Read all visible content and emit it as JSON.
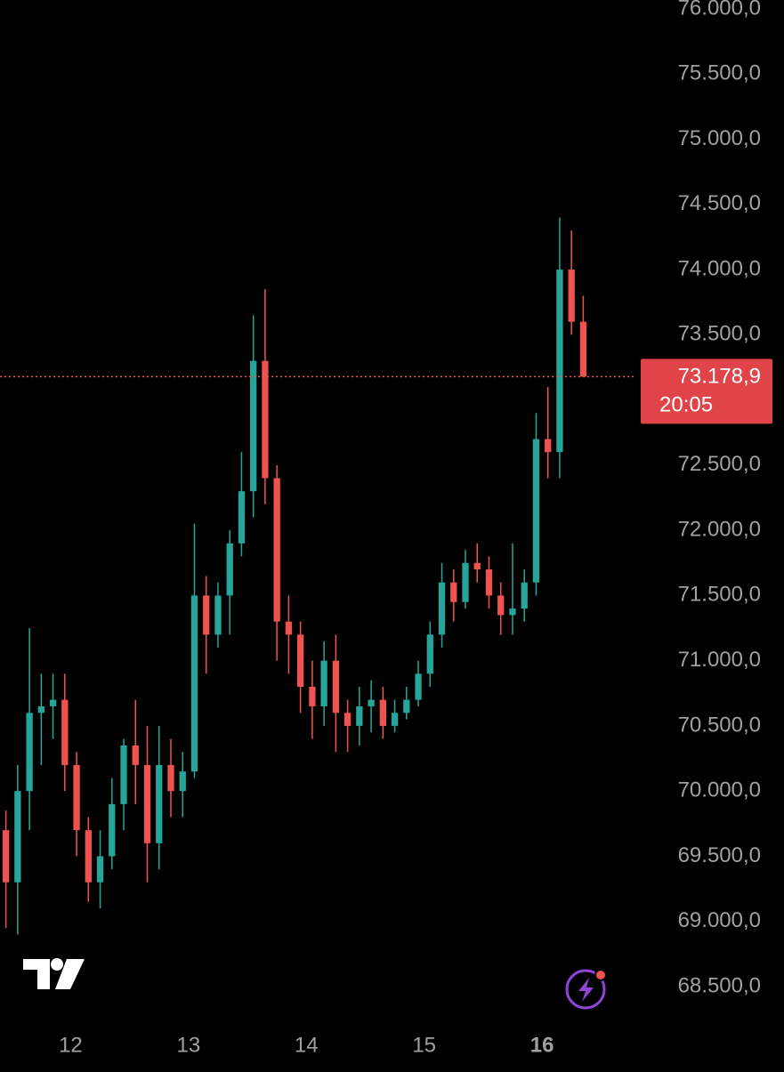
{
  "chart_data": {
    "type": "candlestick",
    "x": [
      11.45,
      11.55,
      11.65,
      11.75,
      11.85,
      11.95,
      12.05,
      12.15,
      12.25,
      12.35,
      12.45,
      12.55,
      12.65,
      12.75,
      12.85,
      12.95,
      13.05,
      13.15,
      13.25,
      13.35,
      13.45,
      13.55,
      13.65,
      13.75,
      13.85,
      13.95,
      14.05,
      14.15,
      14.25,
      14.35,
      14.45,
      14.55,
      14.65,
      14.75,
      14.85,
      14.95,
      15.05,
      15.15,
      15.25,
      15.35,
      15.45,
      15.55,
      15.65,
      15.75,
      15.85,
      15.95,
      16.05,
      16.15,
      16.25,
      16.35
    ],
    "open": [
      69700,
      69300,
      70000,
      70600,
      70650,
      70700,
      70200,
      69700,
      69300,
      69500,
      69900,
      70350,
      70200,
      69600,
      70200,
      70000,
      70150,
      71500,
      71200,
      71500,
      71900,
      72300,
      73300,
      72400,
      71300,
      71200,
      70800,
      70650,
      71000,
      70600,
      70500,
      70650,
      70700,
      70500,
      70600,
      70700,
      70900,
      71200,
      71600,
      71450,
      71750,
      71700,
      71500,
      71350,
      71400,
      71600,
      72700,
      72600,
      74000,
      73600
    ],
    "high": [
      69850,
      70200,
      71250,
      70900,
      70900,
      70900,
      70300,
      69800,
      69700,
      70100,
      70400,
      70700,
      70500,
      70500,
      70400,
      70300,
      72050,
      71650,
      71600,
      72000,
      72600,
      73650,
      73850,
      72500,
      71500,
      71300,
      71000,
      71150,
      71200,
      70700,
      70800,
      70850,
      70800,
      70700,
      70800,
      71000,
      71300,
      71750,
      71700,
      71850,
      71900,
      71800,
      71600,
      71900,
      71700,
      72900,
      73100,
      74400,
      74300,
      73800
    ],
    "low": [
      68950,
      68900,
      69700,
      70200,
      70400,
      70000,
      69500,
      69150,
      69100,
      69400,
      69700,
      69900,
      69300,
      69400,
      69800,
      69800,
      70100,
      70900,
      71100,
      71200,
      71800,
      72100,
      72200,
      71000,
      70900,
      70600,
      70400,
      70500,
      70300,
      70300,
      70350,
      70450,
      70400,
      70450,
      70550,
      70650,
      70800,
      71100,
      71300,
      71400,
      71600,
      71400,
      71200,
      71200,
      71300,
      71500,
      72400,
      72400,
      73500,
      73178.9
    ],
    "close": [
      69300,
      70000,
      70600,
      70650,
      70700,
      70200,
      69700,
      69300,
      69500,
      69900,
      70350,
      70200,
      69600,
      70200,
      70000,
      70150,
      71500,
      71200,
      71500,
      71900,
      72300,
      73300,
      72400,
      71300,
      71200,
      70800,
      70650,
      71000,
      70600,
      70500,
      70650,
      70700,
      70500,
      70600,
      70700,
      70900,
      71200,
      71600,
      71450,
      71750,
      71700,
      71500,
      71350,
      71400,
      71600,
      72700,
      72600,
      74000,
      73600,
      73178.9
    ],
    "up_color": "#26a69a",
    "down_color": "#ef5350",
    "xlim": [
      11.4,
      16.8
    ],
    "xticks": [
      12,
      13,
      14,
      15,
      16
    ],
    "ylim": [
      68500,
      76000
    ],
    "yticks": [
      {
        "value": 68500,
        "label": "68.500,0"
      },
      {
        "value": 69000,
        "label": "69.000,0"
      },
      {
        "value": 69500,
        "label": "69.500,0"
      },
      {
        "value": 70000,
        "label": "70.000,0"
      },
      {
        "value": 70500,
        "label": "70.500,0"
      },
      {
        "value": 71000,
        "label": "71.000,0"
      },
      {
        "value": 71500,
        "label": "71.500,0"
      },
      {
        "value": 72000,
        "label": "72.000,0"
      },
      {
        "value": 72500,
        "label": "72.500,0"
      },
      {
        "value": 73000,
        "label": "73.000,0"
      },
      {
        "value": 73500,
        "label": "73.500,0"
      },
      {
        "value": 74000,
        "label": "74.000,0"
      },
      {
        "value": 74500,
        "label": "74.500,0"
      },
      {
        "value": 75000,
        "label": "75.000,0"
      },
      {
        "value": 75500,
        "label": "75.500,0"
      },
      {
        "value": 76000,
        "label": "76.000,0"
      }
    ],
    "current_price": {
      "value": 73178.9,
      "label": "73.178,9"
    },
    "countdown": "20:05",
    "grid": false
  }
}
